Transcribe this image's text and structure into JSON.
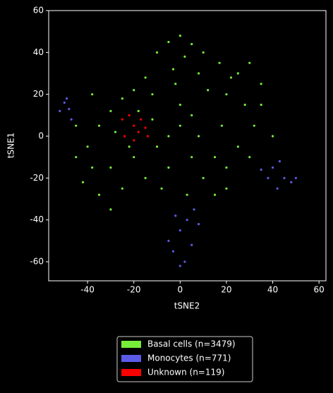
{
  "chart_data": {
    "type": "scatter",
    "x_label": "tSNE2",
    "y_label": "tSNE1",
    "xlim": [
      -56.8,
      63
    ],
    "ylim": [
      -69.1,
      60
    ],
    "xticks": [
      -40,
      -20,
      0,
      20,
      40,
      60
    ],
    "yticks": [
      -60,
      -40,
      -20,
      0,
      20,
      40,
      60
    ],
    "legend_position": "below",
    "series": [
      {
        "name": "Basal cells (n=3479)",
        "color": "#76ee3a",
        "x": [
          -5,
          0,
          5,
          -10,
          2,
          10,
          -3,
          8,
          -15,
          -20,
          -25,
          -12,
          -18,
          -30,
          -35,
          -40,
          -38,
          -45,
          -42,
          -35,
          -30,
          -25,
          -30,
          -20,
          -15,
          -10,
          -5,
          0,
          5,
          0,
          8,
          5,
          -5,
          10,
          15,
          20,
          18,
          20,
          25,
          30,
          28,
          35,
          32,
          25,
          20,
          15,
          22,
          -8,
          -22,
          -28,
          12,
          -2,
          3,
          -12,
          30,
          35,
          -45,
          -38,
          40,
          17
        ],
        "y": [
          45,
          48,
          44,
          40,
          38,
          40,
          32,
          30,
          28,
          22,
          18,
          20,
          12,
          12,
          5,
          -5,
          -15,
          -10,
          -22,
          -28,
          -35,
          -25,
          -15,
          -10,
          -20,
          -5,
          0,
          5,
          10,
          15,
          0,
          -10,
          -15,
          -20,
          -28,
          -15,
          5,
          20,
          30,
          35,
          15,
          25,
          5,
          -5,
          -25,
          -10,
          28,
          -25,
          -5,
          2,
          22,
          25,
          -28,
          8,
          -10,
          15,
          5,
          20,
          0,
          35
        ]
      },
      {
        "name": "Monocytes (n=771)",
        "color": "#5b5be8",
        "x": [
          -50,
          -48,
          -52,
          -49,
          -47,
          40,
          45,
          48,
          38,
          43,
          50,
          42,
          35,
          0,
          3,
          -3,
          2,
          6,
          -5,
          0,
          8,
          -2,
          5
        ],
        "y": [
          16,
          13,
          12,
          18,
          8,
          -15,
          -20,
          -22,
          -20,
          -12,
          -20,
          -25,
          -16,
          -45,
          -40,
          -55,
          -60,
          -35,
          -50,
          -62,
          -42,
          -38,
          -52
        ]
      },
      {
        "name": "Unknown (n=119)",
        "color": "#ff0000",
        "x": [
          -20,
          -25,
          -18,
          -22,
          -15,
          -24,
          -17,
          -20,
          -14
        ],
        "y": [
          5,
          8,
          2,
          10,
          4,
          0,
          8,
          -2,
          0
        ]
      }
    ]
  }
}
